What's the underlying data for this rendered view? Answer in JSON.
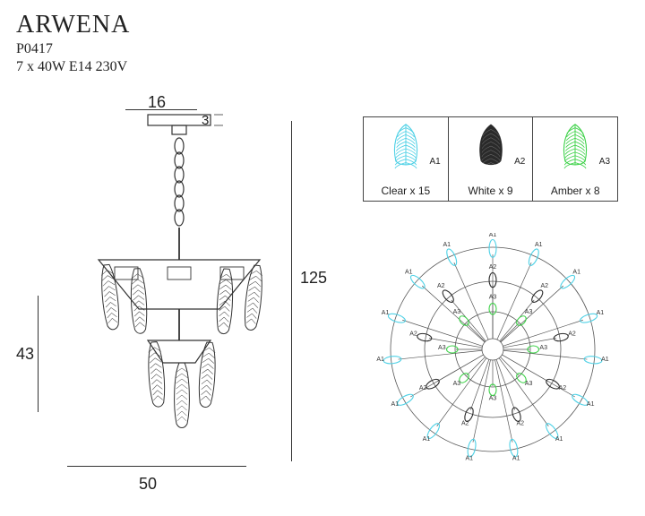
{
  "header": {
    "title": "ARWENA",
    "model": "P0417",
    "spec": "7 x 40W E14 230V"
  },
  "dimensions": {
    "mount_width": "16",
    "mount_height": "3",
    "body_height": "43",
    "overall_height": "125",
    "diameter": "50"
  },
  "legend": {
    "items": [
      {
        "code": "A1",
        "caption": "Clear  x 15",
        "color": "#4fd1e6",
        "leaf_type": "lines"
      },
      {
        "code": "A2",
        "caption": "White x 9",
        "color": "#2a2a2a",
        "leaf_type": "solid"
      },
      {
        "code": "A3",
        "caption": "Amber x 8",
        "color": "#3fd24a",
        "leaf_type": "lines"
      }
    ],
    "border_color": "#444444"
  },
  "radial": {
    "outer_color": "#4fd1e6",
    "middle_color": "#2a2a2a",
    "inner_color": "#3fd24a",
    "spoke_color": "#555555",
    "outer_radius": 120,
    "middle_radius": 80,
    "inner_radius": 45,
    "outer_count": 15,
    "middle_count": 9,
    "inner_count": 8,
    "label_a1": "A1",
    "label_a2": "A2",
    "label_a3": "A3",
    "label_fontsize": 7
  },
  "drawing": {
    "line_color": "#333333",
    "line_width": 1.2,
    "mount_w": 70,
    "mount_h": 12,
    "chain_links": 6,
    "body_top_w": 180,
    "body_bot_w": 90,
    "feather_count": 6
  }
}
